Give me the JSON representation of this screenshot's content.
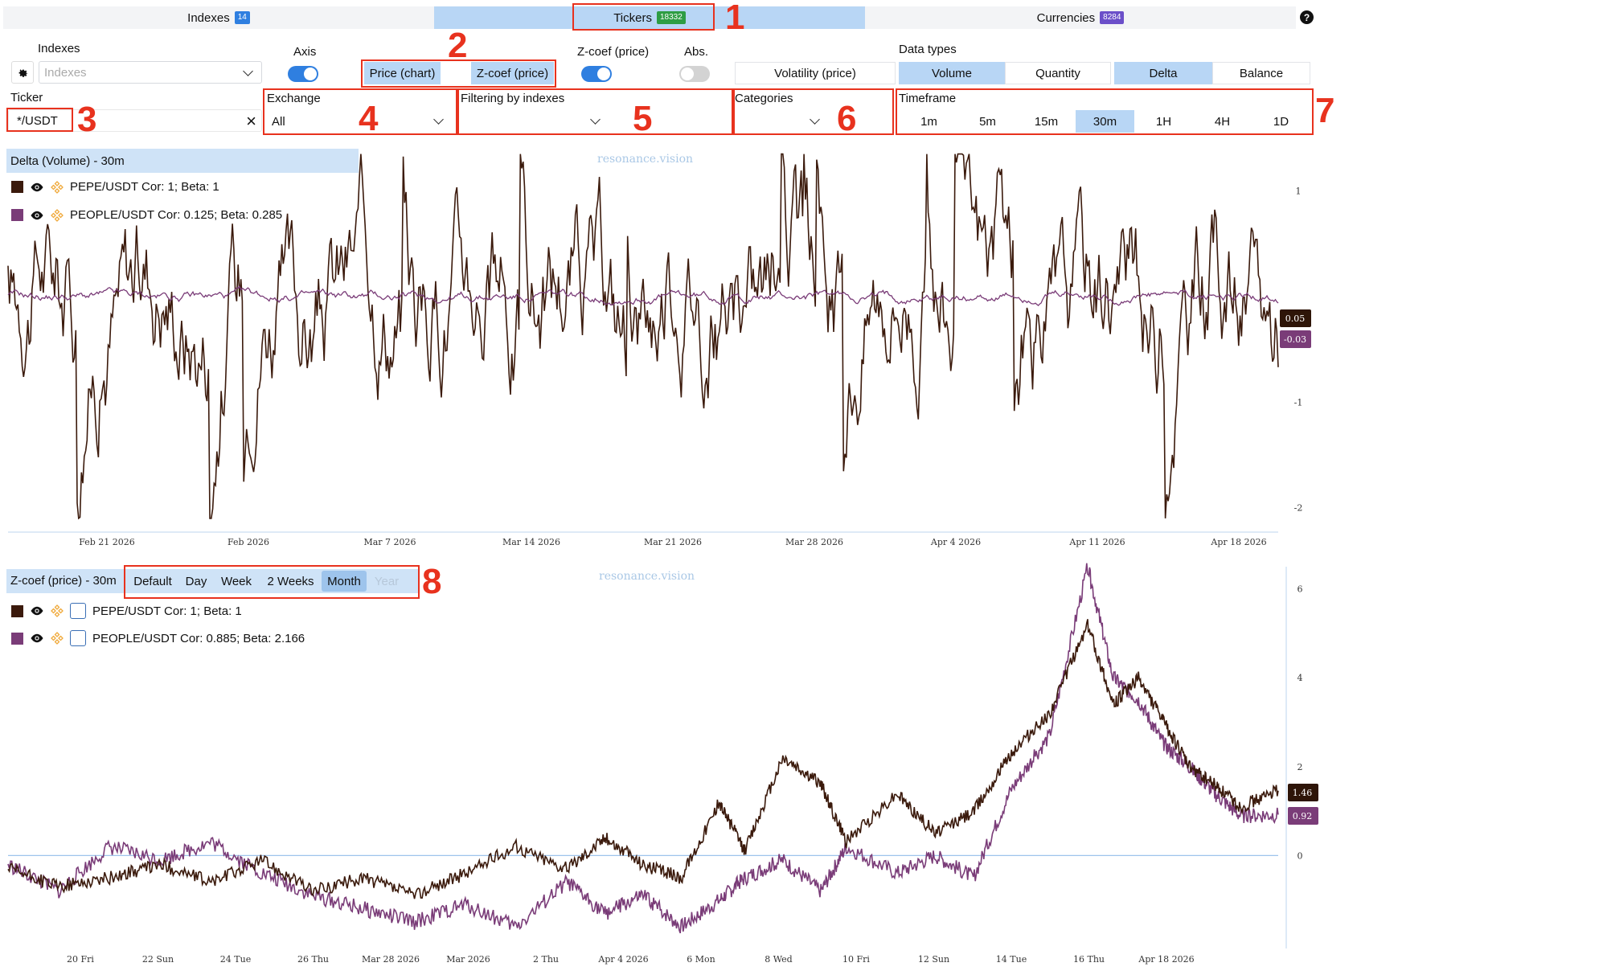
{
  "tabs": [
    {
      "label": "Indexes",
      "badge": "14",
      "badge_color": "#2f7fe0",
      "active": false
    },
    {
      "label": "Tickers",
      "badge": "18332",
      "badge_color": "#2e9d44",
      "active": true
    },
    {
      "label": "Currencies",
      "badge": "8284",
      "badge_color": "#6b4fc9",
      "active": false
    }
  ],
  "help_label": "?",
  "controls": {
    "indexes_label": "Indexes",
    "indexes_placeholder": "Indexes",
    "axis_label": "Axis",
    "chart_mode": {
      "price_chart": "Price (chart)",
      "zcoef_price": "Z-coef (price)",
      "selected": "both"
    },
    "zcoef_label": "Z-coef (price)",
    "abs_label": "Abs.",
    "axis_on": true,
    "zcoef_on": true,
    "abs_on": false,
    "data_types_label": "Data types",
    "data_types": [
      "Volatility (price)",
      "Volume",
      "Quantity",
      "Delta",
      "Balance"
    ],
    "data_types_active": [
      "Volume",
      "Delta"
    ],
    "ticker_label": "Ticker",
    "ticker_value": "*/USDT",
    "clear_icon": "×",
    "exchange_label": "Exchange",
    "exchange_value": "All",
    "filtering_label": "Filtering by indexes",
    "filtering_value": "",
    "categories_label": "Categories",
    "categories_value": "",
    "timeframe_label": "Timeframe",
    "timeframes": [
      "1m",
      "5m",
      "15m",
      "30m",
      "1H",
      "4H",
      "1D"
    ],
    "timeframe_active": "30m"
  },
  "annotations": [
    "1",
    "2",
    "3",
    "4",
    "5",
    "6",
    "7",
    "8"
  ],
  "colors": {
    "accent_light": "#b8d6f5",
    "pepe": "#3b1a0c",
    "people": "#7a3c78",
    "annotation": "#e8321e"
  },
  "top_chart": {
    "title": "Delta (Volume) - 30m",
    "watermark": "resonance.vision",
    "legend": [
      {
        "name": "PEPE/USDT",
        "stats": "Cor: 1; Beta: 1"
      },
      {
        "name": "PEOPLE/USDT",
        "stats": "Cor: 0.125; Beta: 0.285"
      }
    ],
    "price_tags": [
      "0.05",
      "-0.03"
    ]
  },
  "bottom_chart": {
    "title": "Z-coef (price) - 30m",
    "watermark": "resonance.vision",
    "ranges": [
      "Default",
      "Day",
      "Week",
      "2 Weeks",
      "Month",
      "Year"
    ],
    "range_active": "Month",
    "range_disabled": "Year",
    "legend": [
      {
        "name": "PEPE/USDT",
        "stats": "Cor: 1; Beta: 1"
      },
      {
        "name": "PEOPLE/USDT",
        "stats": "Cor: 0.885; Beta: 2.166"
      }
    ],
    "price_tags": [
      "1.46",
      "0.92"
    ]
  },
  "chart_data": [
    {
      "type": "line",
      "title": "Delta (Volume) - 30m",
      "x_ticks": [
        "Feb 21 2026",
        "Feb 2026",
        "Mar 7 2026",
        "Mar 14 2026",
        "Mar 21 2026",
        "Mar 28 2026",
        "Apr 4 2026",
        "Apr 11 2026",
        "Apr 18 2026"
      ],
      "y_ticks": [
        "1",
        "-1",
        "-2"
      ],
      "ylim": [
        -2.2,
        1.4
      ],
      "series": [
        {
          "name": "PEPE/USDT",
          "color": "#3b1a0c",
          "last": 0.05
        },
        {
          "name": "PEOPLE/USDT",
          "color": "#7a3c78",
          "last": -0.03
        }
      ]
    },
    {
      "type": "line",
      "title": "Z-coef (price) - 30m",
      "x_ticks": [
        "20 Fri",
        "22 Sun",
        "24 Tue",
        "26 Thu",
        "Mar 28 2026",
        "Mar 2026",
        "2 Thu",
        "Apr 4 2026",
        "6 Mon",
        "8 Wed",
        "10 Fri",
        "12 Sun",
        "14 Tue",
        "16 Thu",
        "Apr 18 2026"
      ],
      "y_ticks": [
        "6",
        "4",
        "2",
        "0"
      ],
      "ylim": [
        -2,
        6.5
      ],
      "series": [
        {
          "name": "PEPE/USDT",
          "color": "#3b1a0c",
          "last": 1.46,
          "points": [
            [
              0,
              -0.3
            ],
            [
              0.04,
              -0.7
            ],
            [
              0.08,
              -0.5
            ],
            [
              0.12,
              -0.2
            ],
            [
              0.16,
              -0.6
            ],
            [
              0.2,
              -0.1
            ],
            [
              0.24,
              -0.8
            ],
            [
              0.28,
              -0.5
            ],
            [
              0.32,
              -0.9
            ],
            [
              0.36,
              -0.4
            ],
            [
              0.4,
              0.2
            ],
            [
              0.44,
              -0.3
            ],
            [
              0.47,
              0.4
            ],
            [
              0.5,
              -0.2
            ],
            [
              0.53,
              -0.5
            ],
            [
              0.56,
              1.2
            ],
            [
              0.58,
              0.1
            ],
            [
              0.61,
              2.2
            ],
            [
              0.64,
              1.6
            ],
            [
              0.66,
              0.3
            ],
            [
              0.7,
              1.4
            ],
            [
              0.73,
              0.5
            ],
            [
              0.76,
              1.0
            ],
            [
              0.79,
              2.3
            ],
            [
              0.82,
              3.2
            ],
            [
              0.85,
              5.2
            ],
            [
              0.87,
              3.4
            ],
            [
              0.89,
              4.0
            ],
            [
              0.91,
              3.0
            ],
            [
              0.93,
              2.0
            ],
            [
              0.95,
              1.6
            ],
            [
              0.97,
              1.1
            ],
            [
              1.0,
              1.46
            ]
          ]
        },
        {
          "name": "PEOPLE/USDT",
          "color": "#7a3c78",
          "last": 0.92,
          "points": [
            [
              0,
              -0.2
            ],
            [
              0.04,
              -0.8
            ],
            [
              0.08,
              0.2
            ],
            [
              0.12,
              -0.1
            ],
            [
              0.16,
              0.3
            ],
            [
              0.2,
              -0.4
            ],
            [
              0.24,
              -0.9
            ],
            [
              0.28,
              -1.2
            ],
            [
              0.32,
              -1.5
            ],
            [
              0.36,
              -1.1
            ],
            [
              0.4,
              -1.6
            ],
            [
              0.44,
              -0.6
            ],
            [
              0.47,
              -1.3
            ],
            [
              0.5,
              -0.9
            ],
            [
              0.53,
              -1.6
            ],
            [
              0.56,
              -1.0
            ],
            [
              0.58,
              -0.5
            ],
            [
              0.61,
              -0.1
            ],
            [
              0.64,
              -0.8
            ],
            [
              0.66,
              0.2
            ],
            [
              0.7,
              -0.4
            ],
            [
              0.73,
              0.0
            ],
            [
              0.76,
              -0.5
            ],
            [
              0.79,
              1.5
            ],
            [
              0.82,
              2.7
            ],
            [
              0.85,
              6.5
            ],
            [
              0.87,
              4.0
            ],
            [
              0.89,
              3.5
            ],
            [
              0.91,
              2.5
            ],
            [
              0.93,
              2.0
            ],
            [
              0.95,
              1.4
            ],
            [
              0.97,
              0.9
            ],
            [
              1.0,
              0.92
            ]
          ]
        }
      ]
    }
  ]
}
